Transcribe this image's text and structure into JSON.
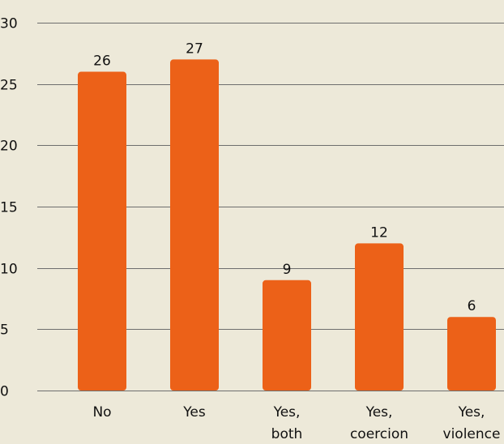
{
  "chart_data": {
    "type": "bar",
    "categories": [
      "No",
      "Yes",
      "Yes, both",
      "Yes, coercion",
      "Yes, violence"
    ],
    "category_lines": [
      [
        "No"
      ],
      [
        "Yes"
      ],
      [
        "Yes,",
        "both"
      ],
      [
        "Yes,",
        "coercion"
      ],
      [
        "Yes,",
        "violence"
      ]
    ],
    "values": [
      26,
      27,
      9,
      12,
      6
    ],
    "data_labels": [
      "26",
      "27",
      "9",
      "12",
      "6"
    ],
    "yticks": [
      0,
      5,
      10,
      15,
      20,
      25,
      30
    ],
    "ytick_labels": [
      "0",
      "5",
      "10",
      "15",
      "20",
      "25",
      "30"
    ],
    "ylim": [
      0,
      30
    ],
    "grid": true,
    "title": "",
    "xlabel": "",
    "ylabel": "",
    "colors": {
      "bar": "#ec6118",
      "background": "#ede9d9",
      "grid": "#6e6e6e",
      "text": "#111111"
    }
  }
}
